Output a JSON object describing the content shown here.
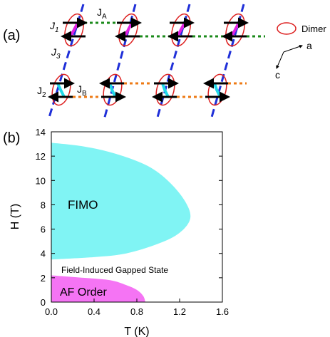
{
  "panel_a": {
    "label": "(a)",
    "couplings": {
      "j1": "J",
      "j1_sub": "1",
      "ja": "J",
      "ja_sub": "A",
      "j2": "J",
      "j2_sub": "2",
      "j3": "J",
      "j3_sub": "3",
      "jb": "J",
      "jb_sub": "B"
    },
    "legend": {
      "dimer": "Dimer"
    },
    "axes": {
      "a": "a",
      "c": "c"
    },
    "colors": {
      "chain": "#1f2fd8",
      "ja_bond": "#1a8a1a",
      "jb_bond": "#ee7a14",
      "j1_dimer": "#e020e0",
      "j2_dimer": "#20d8e8",
      "dimer_outline": "#dd2020",
      "spin": "#000000"
    }
  },
  "panel_b": {
    "label": "(b)",
    "regions": {
      "fimo": {
        "label": "FIMO",
        "color": "#80f4f4"
      },
      "gapped": {
        "label": "Field-Induced Gapped State"
      },
      "af": {
        "label": "AF Order",
        "color": "#f574f4"
      }
    }
  },
  "chart_data": {
    "type": "area",
    "xlabel": "T (K)",
    "ylabel": "H (T)",
    "xlim": [
      0.0,
      1.6
    ],
    "ylim": [
      0,
      14
    ],
    "x_ticks": [
      "0.0",
      "0.4",
      "0.8",
      "1.2",
      "1.6"
    ],
    "y_ticks": [
      "0",
      "2",
      "4",
      "6",
      "8",
      "10",
      "12",
      "14"
    ],
    "grid": false,
    "series": [
      {
        "name": "FIMO",
        "boundary": [
          [
            0.0,
            3.5
          ],
          [
            0.4,
            3.7
          ],
          [
            0.7,
            4.0
          ],
          [
            1.0,
            4.8
          ],
          [
            1.2,
            5.7
          ],
          [
            1.3,
            6.9
          ],
          [
            1.25,
            8.3
          ],
          [
            1.1,
            9.9
          ],
          [
            0.9,
            11.2
          ],
          [
            0.6,
            12.2
          ],
          [
            0.3,
            12.8
          ],
          [
            0.0,
            13.1
          ]
        ]
      },
      {
        "name": "AF Order",
        "boundary": [
          [
            0.0,
            2.2
          ],
          [
            0.3,
            2.0
          ],
          [
            0.55,
            1.8
          ],
          [
            0.7,
            1.4
          ],
          [
            0.8,
            1.0
          ],
          [
            0.86,
            0.5
          ],
          [
            0.88,
            0.0
          ],
          [
            0.0,
            0.0
          ]
        ]
      }
    ]
  }
}
